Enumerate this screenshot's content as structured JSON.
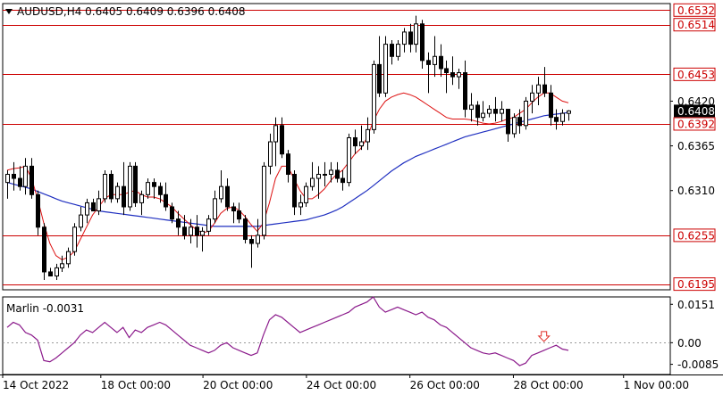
{
  "header": {
    "symbol_info": "AUDUSD,H4  0.6405 0.6409 0.6396 0.6408",
    "dropdown_icon": "triangle-down-icon"
  },
  "indicator": {
    "label": "Marlin -0.0031"
  },
  "colors": {
    "bull": "#ffffff",
    "bear": "#000000",
    "level": "#cc0000",
    "ma_fast": "#dd1111",
    "ma_slow": "#1f2fc0",
    "oscillator": "#8b1a8b",
    "arrow": "#e0302a",
    "current_price_bg": "#000000"
  },
  "chart_data": [
    {
      "type": "candlestick",
      "title": "AUDUSD,H4",
      "ohlc_readout": {
        "open": 0.6405,
        "high": 0.6409,
        "low": 0.6396,
        "close": 0.6408
      },
      "x_tick_labels": [
        "14 Oct 2022",
        "18 Oct 00:00",
        "20 Oct 00:00",
        "24 Oct 00:00",
        "26 Oct 00:00",
        "28 Oct 00:00",
        "1 Nov 00:00"
      ],
      "y_tick_labels": [
        "0.6532",
        "0.6514",
        "0.6453",
        "0.6420",
        "0.6408",
        "0.6392",
        "0.6365",
        "0.6310",
        "0.6255",
        "0.6195"
      ],
      "ylim": [
        0.6188,
        0.654
      ],
      "horizontal_levels": [
        0.6532,
        0.6514,
        0.6453,
        0.6392,
        0.6255,
        0.6195
      ],
      "current_price": 0.6408,
      "candles": [
        [
          0.632,
          0.6335,
          0.63,
          0.633
        ],
        [
          0.633,
          0.6345,
          0.631,
          0.6325
        ],
        [
          0.6325,
          0.634,
          0.631,
          0.6315
        ],
        [
          0.6315,
          0.635,
          0.6305,
          0.634
        ],
        [
          0.634,
          0.635,
          0.63,
          0.6305
        ],
        [
          0.6305,
          0.631,
          0.6255,
          0.6265
        ],
        [
          0.6265,
          0.627,
          0.62,
          0.621
        ],
        [
          0.621,
          0.6215,
          0.6205,
          0.6205
        ],
        [
          0.6205,
          0.622,
          0.62,
          0.6215
        ],
        [
          0.6215,
          0.623,
          0.621,
          0.622
        ],
        [
          0.622,
          0.624,
          0.6215,
          0.6235
        ],
        [
          0.6235,
          0.627,
          0.623,
          0.6265
        ],
        [
          0.6265,
          0.629,
          0.626,
          0.628
        ],
        [
          0.628,
          0.63,
          0.627,
          0.6295
        ],
        [
          0.6295,
          0.63,
          0.6285,
          0.6285
        ],
        [
          0.6285,
          0.631,
          0.628,
          0.63
        ],
        [
          0.63,
          0.6335,
          0.6295,
          0.633
        ],
        [
          0.633,
          0.6335,
          0.6295,
          0.63
        ],
        [
          0.63,
          0.632,
          0.6295,
          0.6315
        ],
        [
          0.6315,
          0.6345,
          0.628,
          0.629
        ],
        [
          0.629,
          0.6345,
          0.6285,
          0.634
        ],
        [
          0.634,
          0.6345,
          0.629,
          0.6295
        ],
        [
          0.6295,
          0.631,
          0.628,
          0.6305
        ],
        [
          0.6305,
          0.6325,
          0.63,
          0.632
        ],
        [
          0.632,
          0.6325,
          0.63,
          0.6315
        ],
        [
          0.6315,
          0.632,
          0.6295,
          0.6305
        ],
        [
          0.6305,
          0.632,
          0.6285,
          0.629
        ],
        [
          0.629,
          0.6295,
          0.627,
          0.6275
        ],
        [
          0.6275,
          0.6285,
          0.6255,
          0.6265
        ],
        [
          0.6265,
          0.628,
          0.625,
          0.6255
        ],
        [
          0.6255,
          0.6275,
          0.6245,
          0.6265
        ],
        [
          0.6265,
          0.628,
          0.624,
          0.6255
        ],
        [
          0.6255,
          0.6265,
          0.6235,
          0.626
        ],
        [
          0.626,
          0.628,
          0.6255,
          0.6275
        ],
        [
          0.6275,
          0.631,
          0.627,
          0.63
        ],
        [
          0.63,
          0.6335,
          0.6295,
          0.6315
        ],
        [
          0.6315,
          0.6325,
          0.6285,
          0.629
        ],
        [
          0.629,
          0.6295,
          0.627,
          0.6285
        ],
        [
          0.6285,
          0.6295,
          0.627,
          0.6275
        ],
        [
          0.6275,
          0.628,
          0.6245,
          0.625
        ],
        [
          0.625,
          0.6255,
          0.6215,
          0.6245
        ],
        [
          0.6245,
          0.6275,
          0.624,
          0.6255
        ],
        [
          0.6255,
          0.6345,
          0.625,
          0.634
        ],
        [
          0.634,
          0.638,
          0.633,
          0.637
        ],
        [
          0.637,
          0.64,
          0.634,
          0.639
        ],
        [
          0.639,
          0.64,
          0.635,
          0.6355
        ],
        [
          0.6355,
          0.636,
          0.632,
          0.633
        ],
        [
          0.633,
          0.6335,
          0.628,
          0.629
        ],
        [
          0.629,
          0.6305,
          0.628,
          0.6295
        ],
        [
          0.6295,
          0.632,
          0.629,
          0.6315
        ],
        [
          0.6315,
          0.6345,
          0.631,
          0.6325
        ],
        [
          0.6325,
          0.634,
          0.63,
          0.633
        ],
        [
          0.633,
          0.6345,
          0.6315,
          0.633
        ],
        [
          0.633,
          0.6345,
          0.632,
          0.6335
        ],
        [
          0.6335,
          0.6345,
          0.632,
          0.6325
        ],
        [
          0.6325,
          0.6335,
          0.631,
          0.632
        ],
        [
          0.632,
          0.638,
          0.6315,
          0.6375
        ],
        [
          0.6375,
          0.6385,
          0.6355,
          0.6365
        ],
        [
          0.6365,
          0.639,
          0.636,
          0.637
        ],
        [
          0.637,
          0.64,
          0.636,
          0.6385
        ],
        [
          0.6385,
          0.647,
          0.638,
          0.6465
        ],
        [
          0.6465,
          0.65,
          0.6425,
          0.643
        ],
        [
          0.643,
          0.65,
          0.6425,
          0.649
        ],
        [
          0.649,
          0.6495,
          0.6465,
          0.6475
        ],
        [
          0.6475,
          0.6495,
          0.647,
          0.649
        ],
        [
          0.649,
          0.651,
          0.648,
          0.6505
        ],
        [
          0.6505,
          0.6515,
          0.648,
          0.649
        ],
        [
          0.649,
          0.6525,
          0.648,
          0.6515
        ],
        [
          0.6515,
          0.652,
          0.646,
          0.647
        ],
        [
          0.647,
          0.648,
          0.643,
          0.6465
        ],
        [
          0.6465,
          0.65,
          0.645,
          0.6475
        ],
        [
          0.6475,
          0.649,
          0.645,
          0.646
        ],
        [
          0.646,
          0.647,
          0.643,
          0.6455
        ],
        [
          0.6455,
          0.6475,
          0.644,
          0.645
        ],
        [
          0.645,
          0.646,
          0.6435,
          0.6455
        ],
        [
          0.6455,
          0.647,
          0.64,
          0.641
        ],
        [
          0.641,
          0.643,
          0.6395,
          0.6415
        ],
        [
          0.6415,
          0.642,
          0.639,
          0.64
        ],
        [
          0.64,
          0.642,
          0.6395,
          0.6405
        ],
        [
          0.6405,
          0.6415,
          0.64,
          0.641
        ],
        [
          0.641,
          0.6425,
          0.6395,
          0.6405
        ],
        [
          0.6405,
          0.642,
          0.6395,
          0.641
        ],
        [
          0.641,
          0.641,
          0.637,
          0.638
        ],
        [
          0.638,
          0.6405,
          0.6375,
          0.64
        ],
        [
          0.64,
          0.641,
          0.638,
          0.639
        ],
        [
          0.639,
          0.6425,
          0.6385,
          0.642
        ],
        [
          0.642,
          0.644,
          0.6405,
          0.643
        ],
        [
          0.643,
          0.645,
          0.6415,
          0.644
        ],
        [
          0.644,
          0.6462,
          0.6425,
          0.643
        ],
        [
          0.643,
          0.644,
          0.639,
          0.64
        ],
        [
          0.64,
          0.641,
          0.6385,
          0.6395
        ],
        [
          0.6395,
          0.641,
          0.639,
          0.6405
        ],
        [
          0.6405,
          0.6409,
          0.6396,
          0.6408
        ]
      ],
      "ma_fast_values": [
        0.6335,
        0.6337,
        0.6338,
        0.634,
        0.6325,
        0.63,
        0.627,
        0.6245,
        0.623,
        0.6225,
        0.6228,
        0.6235,
        0.625,
        0.6265,
        0.628,
        0.629,
        0.63,
        0.6305,
        0.6305,
        0.6305,
        0.6308,
        0.631,
        0.6305,
        0.6302,
        0.6302,
        0.63,
        0.6295,
        0.629,
        0.6282,
        0.6275,
        0.6268,
        0.6262,
        0.6258,
        0.626,
        0.627,
        0.6282,
        0.6288,
        0.629,
        0.6286,
        0.6278,
        0.6268,
        0.626,
        0.627,
        0.6295,
        0.6325,
        0.634,
        0.634,
        0.6325,
        0.631,
        0.63,
        0.63,
        0.6305,
        0.6312,
        0.6322,
        0.633,
        0.6335,
        0.6345,
        0.6355,
        0.6362,
        0.6375,
        0.6395,
        0.641,
        0.642,
        0.6425,
        0.6428,
        0.643,
        0.6428,
        0.6425,
        0.642,
        0.6415,
        0.641,
        0.6405,
        0.64,
        0.6398,
        0.6398,
        0.6398,
        0.6397,
        0.6395,
        0.6393,
        0.6392,
        0.6393,
        0.6395,
        0.6398,
        0.64,
        0.6405,
        0.641,
        0.6418,
        0.6425,
        0.643,
        0.643,
        0.6425,
        0.642,
        0.6418
      ],
      "ma_slow_values": [
        0.632,
        0.6318,
        0.6316,
        0.6314,
        0.6312,
        0.6309,
        0.6306,
        0.6303,
        0.63,
        0.6297,
        0.6295,
        0.6293,
        0.6291,
        0.6289,
        0.6287,
        0.6285,
        0.6284,
        0.6283,
        0.6282,
        0.6281,
        0.628,
        0.6279,
        0.6278,
        0.6277,
        0.6276,
        0.6275,
        0.6274,
        0.6273,
        0.6272,
        0.6271,
        0.627,
        0.6269,
        0.6268,
        0.6267,
        0.6266,
        0.6266,
        0.6266,
        0.6266,
        0.6266,
        0.6266,
        0.6266,
        0.6266,
        0.6267,
        0.6268,
        0.6269,
        0.627,
        0.6271,
        0.6272,
        0.6273,
        0.6274,
        0.6276,
        0.6278,
        0.628,
        0.6283,
        0.6286,
        0.629,
        0.6295,
        0.63,
        0.6305,
        0.631,
        0.6316,
        0.6322,
        0.6328,
        0.6334,
        0.6339,
        0.6344,
        0.6348,
        0.6352,
        0.6355,
        0.6358,
        0.6361,
        0.6364,
        0.6367,
        0.637,
        0.6373,
        0.6376,
        0.6378,
        0.638,
        0.6382,
        0.6384,
        0.6386,
        0.6388,
        0.639,
        0.6392,
        0.6394,
        0.6396,
        0.6398,
        0.64,
        0.6402,
        0.6403,
        0.6404,
        0.6405,
        0.6406
      ]
    },
    {
      "type": "line",
      "title": "Marlin -0.0031",
      "y_tick_labels": [
        "0.0151",
        "0.00",
        "-0.0085"
      ],
      "ylim": [
        -0.0125,
        0.018
      ],
      "oscillator_values": [
        0.006,
        0.008,
        0.007,
        0.004,
        0.003,
        0.001,
        -0.007,
        -0.0075,
        -0.006,
        -0.004,
        -0.002,
        0.0,
        0.003,
        0.005,
        0.004,
        0.006,
        0.008,
        0.006,
        0.004,
        0.006,
        0.002,
        0.005,
        0.004,
        0.006,
        0.007,
        0.008,
        0.007,
        0.005,
        0.003,
        0.001,
        -0.001,
        -0.002,
        -0.003,
        -0.004,
        -0.003,
        -0.001,
        0.0,
        -0.002,
        -0.003,
        -0.004,
        -0.005,
        -0.004,
        0.003,
        0.009,
        0.011,
        0.01,
        0.008,
        0.006,
        0.004,
        0.005,
        0.006,
        0.007,
        0.008,
        0.009,
        0.01,
        0.011,
        0.012,
        0.014,
        0.015,
        0.016,
        0.018,
        0.014,
        0.012,
        0.013,
        0.014,
        0.013,
        0.012,
        0.011,
        0.012,
        0.01,
        0.009,
        0.007,
        0.006,
        0.004,
        0.002,
        0.0,
        -0.002,
        -0.003,
        -0.004,
        -0.0045,
        -0.004,
        -0.005,
        -0.006,
        -0.007,
        -0.009,
        -0.008,
        -0.005,
        -0.004,
        -0.003,
        -0.002,
        -0.001,
        -0.0025,
        -0.003
      ],
      "marker": {
        "type": "down-arrow",
        "index": 88
      }
    }
  ]
}
